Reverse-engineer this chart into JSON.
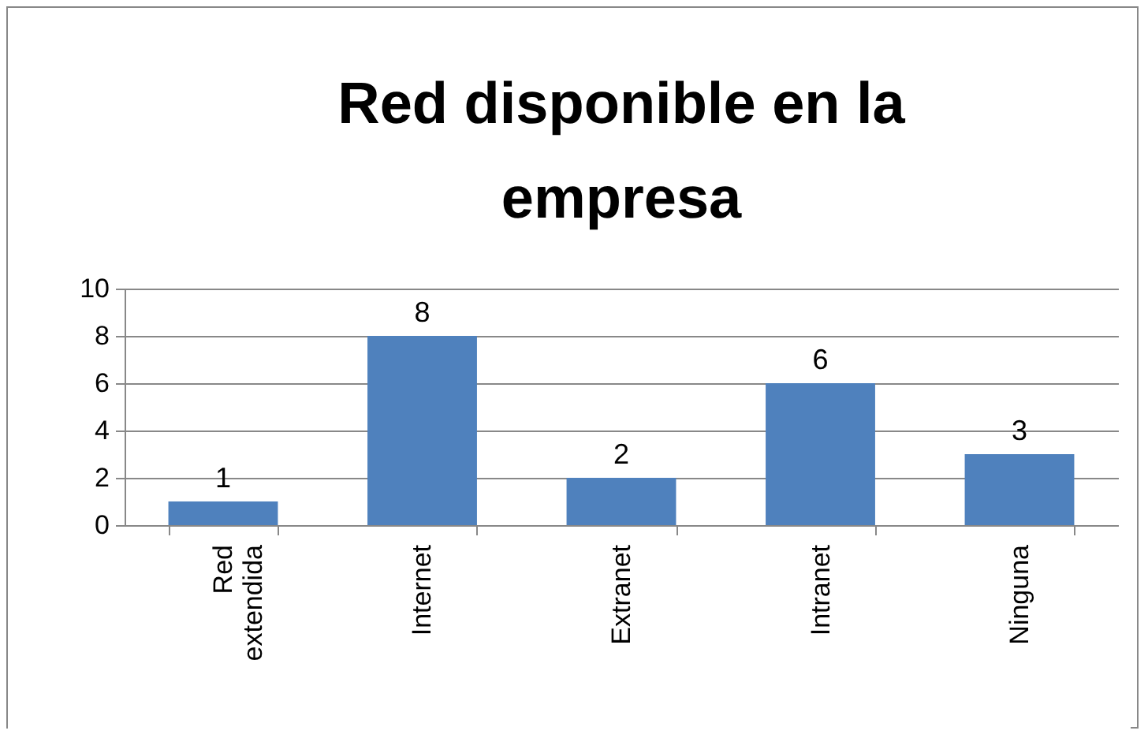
{
  "chart_data": {
    "type": "bar",
    "title": "Red disponible en la empresa",
    "categories": [
      "Red extendida",
      "Internet",
      "Extranet",
      "Intranet",
      "Ninguna"
    ],
    "values": [
      1,
      8,
      2,
      6,
      3
    ],
    "color": "#4f81bd",
    "ylim": [
      0,
      10
    ],
    "yticks": [
      0,
      2,
      4,
      6,
      8,
      10
    ],
    "grid": "y",
    "data_labels": true
  }
}
